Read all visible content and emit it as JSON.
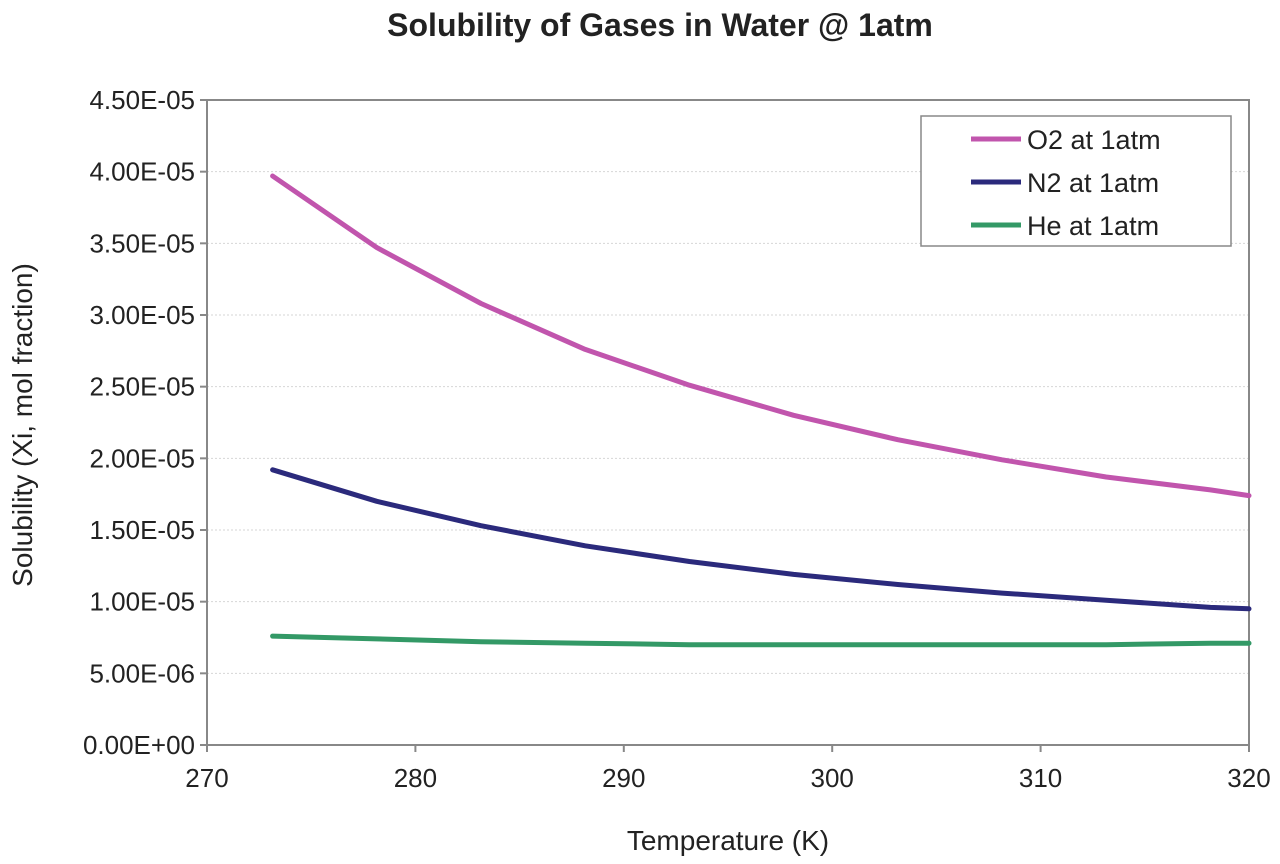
{
  "chart_data": {
    "type": "line",
    "title": "Solubility of Gases in Water @ 1atm",
    "xlabel": "Temperature (K)",
    "ylabel": "Solubility (Xi, mol fraction)",
    "xlim": [
      270,
      320
    ],
    "ylim": [
      0,
      4.5e-05
    ],
    "x_ticks": [
      270,
      280,
      290,
      300,
      310,
      320
    ],
    "x_tick_labels": [
      "270",
      "280",
      "290",
      "300",
      "310",
      "320"
    ],
    "y_ticks": [
      0,
      5e-06,
      1e-05,
      1.5e-05,
      2e-05,
      2.5e-05,
      3e-05,
      3.5e-05,
      4e-05,
      4.5e-05
    ],
    "y_tick_labels": [
      "0.00E+00",
      "5.00E-06",
      "1.00E-05",
      "1.50E-05",
      "2.00E-05",
      "2.50E-05",
      "3.00E-05",
      "3.50E-05",
      "4.00E-05",
      "4.50E-05"
    ],
    "grid": "horizontal",
    "legend_position": "top-right",
    "x": [
      273.15,
      278.15,
      283.15,
      288.15,
      293.15,
      298.15,
      303.15,
      308.15,
      313.15,
      318.15,
      320
    ],
    "series": [
      {
        "name": "O2 at 1atm",
        "color": "#c155ad",
        "values": [
          3.97e-05,
          3.47e-05,
          3.08e-05,
          2.76e-05,
          2.51e-05,
          2.3e-05,
          2.13e-05,
          1.99e-05,
          1.87e-05,
          1.78e-05,
          1.74e-05
        ]
      },
      {
        "name": "N2 at 1atm",
        "color": "#2b2a7c",
        "values": [
          1.92e-05,
          1.7e-05,
          1.53e-05,
          1.39e-05,
          1.28e-05,
          1.19e-05,
          1.12e-05,
          1.06e-05,
          1.01e-05,
          9.6e-06,
          9.5e-06
        ]
      },
      {
        "name": "He at 1atm",
        "color": "#339966",
        "values": [
          7.6e-06,
          7.4e-06,
          7.2e-06,
          7.1e-06,
          7e-06,
          7e-06,
          7e-06,
          7e-06,
          7e-06,
          7.1e-06,
          7.1e-06
        ]
      }
    ]
  }
}
